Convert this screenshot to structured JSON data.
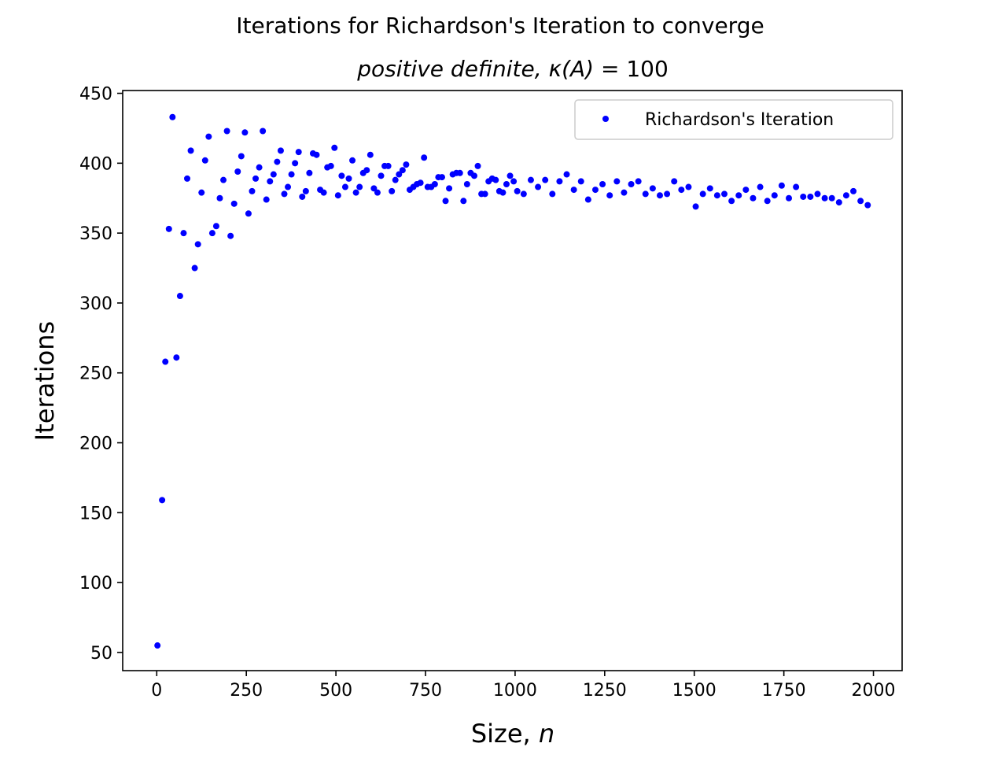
{
  "chart_data": {
    "type": "scatter",
    "title": "Iterations for Richardson's Iteration to converge",
    "subtitle_prefix": "positive definite, ",
    "subtitle_kappa": "κ(A)",
    "subtitle_eq": " = 100",
    "xlabel": "Size, ",
    "xlabel_var": "n",
    "ylabel": "Iterations",
    "xlim": [
      -95,
      2080
    ],
    "ylim": [
      37,
      452
    ],
    "xticks": [
      0,
      250,
      500,
      750,
      1000,
      1250,
      1500,
      1750,
      2000
    ],
    "yticks": [
      50,
      100,
      150,
      200,
      250,
      300,
      350,
      400,
      450
    ],
    "grid": false,
    "legend_position": "upper right",
    "colors": {
      "marker": "#0000ff",
      "axes": "#000000",
      "legend_border": "#cccccc"
    },
    "series": [
      {
        "name": "Richardson's Iteration",
        "marker": "dot",
        "x": [
          2,
          15,
          24,
          34,
          44,
          55,
          65,
          75,
          85,
          95,
          106,
          115,
          125,
          135,
          145,
          155,
          166,
          176,
          186,
          196,
          206,
          216,
          226,
          236,
          246,
          256,
          266,
          276,
          286,
          296,
          306,
          316,
          326,
          336,
          346,
          356,
          366,
          376,
          386,
          396,
          406,
          416,
          426,
          436,
          446,
          456,
          466,
          476,
          486,
          496,
          506,
          516,
          526,
          536,
          546,
          556,
          566,
          576,
          586,
          596,
          606,
          616,
          626,
          636,
          646,
          656,
          666,
          676,
          686,
          696,
          706,
          716,
          726,
          736,
          746,
          756,
          766,
          776,
          786,
          796,
          806,
          816,
          826,
          836,
          846,
          856,
          866,
          876,
          886,
          896,
          906,
          916,
          926,
          936,
          946,
          956,
          966,
          976,
          986,
          996,
          1006,
          1024,
          1044,
          1064,
          1084,
          1104,
          1124,
          1144,
          1164,
          1184,
          1204,
          1224,
          1244,
          1264,
          1284,
          1304,
          1324,
          1344,
          1364,
          1384,
          1404,
          1424,
          1444,
          1464,
          1484,
          1504,
          1524,
          1544,
          1564,
          1584,
          1604,
          1624,
          1644,
          1664,
          1684,
          1704,
          1724,
          1744,
          1764,
          1784,
          1804,
          1824,
          1844,
          1864,
          1884,
          1904,
          1924,
          1944,
          1964,
          1984
        ],
        "y": [
          55,
          159,
          258,
          353,
          433,
          261,
          305,
          350,
          389,
          409,
          325,
          342,
          379,
          402,
          419,
          350,
          355,
          375,
          388,
          423,
          348,
          371,
          394,
          405,
          422,
          364,
          380,
          389,
          397,
          423,
          374,
          387,
          392,
          401,
          409,
          378,
          383,
          392,
          400,
          408,
          376,
          380,
          393,
          407,
          406,
          381,
          379,
          397,
          398,
          411,
          377,
          391,
          383,
          389,
          402,
          379,
          383,
          393,
          395,
          406,
          382,
          379,
          391,
          398,
          398,
          380,
          388,
          392,
          395,
          399,
          381,
          383,
          385,
          386,
          404,
          383,
          383,
          385,
          390,
          390,
          373,
          382,
          392,
          393,
          393,
          373,
          385,
          393,
          391,
          398,
          378,
          378,
          387,
          389,
          388,
          380,
          379,
          385,
          391,
          387,
          380,
          378,
          388,
          383,
          388,
          378,
          387,
          392,
          381,
          387,
          374,
          381,
          385,
          377,
          387,
          379,
          385,
          387,
          378,
          382,
          377,
          378,
          387,
          381,
          383,
          369,
          378,
          382,
          377,
          378,
          373,
          377,
          381,
          375,
          383,
          373,
          377,
          384,
          375,
          383,
          376,
          376,
          378,
          375,
          375,
          372,
          377,
          380,
          373,
          370
        ]
      }
    ]
  }
}
